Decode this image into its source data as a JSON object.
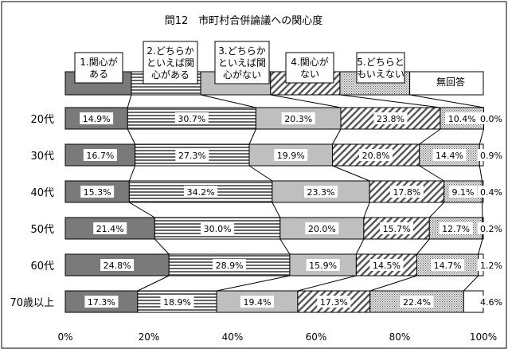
{
  "chart_data": {
    "type": "bar",
    "stacked": true,
    "orientation": "horizontal",
    "title": "問12　市町村合併論議への関心度",
    "xlabel": "",
    "ylabel": "",
    "xlim": [
      0,
      100
    ],
    "x_tick_labels": [
      "0%",
      "20%",
      "40%",
      "60%",
      "80%",
      "100%"
    ],
    "grid": false,
    "legend_position": "top",
    "categories": [
      "20代",
      "30代",
      "40代",
      "50代",
      "60代",
      "70歳以上"
    ],
    "series": [
      {
        "name": "1.関心がある",
        "label_lines": [
          "1.関心が",
          "ある"
        ],
        "pattern": "dark-gray",
        "values": [
          14.9,
          16.7,
          15.3,
          21.4,
          24.8,
          17.3
        ]
      },
      {
        "name": "2.どちらかといえば関心がある",
        "label_lines": [
          "2.どちらか",
          "といえば関",
          "心がある"
        ],
        "pattern": "horizontal-stripes",
        "values": [
          30.7,
          27.3,
          34.2,
          30.0,
          28.9,
          18.9
        ]
      },
      {
        "name": "3.どちらかといえば関心がない",
        "label_lines": [
          "3.どちらか",
          "といえば関",
          "心がない"
        ],
        "pattern": "light-gray",
        "values": [
          20.3,
          19.9,
          23.3,
          20.0,
          15.9,
          19.4
        ]
      },
      {
        "name": "4.関心がない",
        "label_lines": [
          "4.関心が",
          "ない"
        ],
        "pattern": "diagonal-stripes",
        "values": [
          23.8,
          20.8,
          17.8,
          15.7,
          14.5,
          17.3
        ]
      },
      {
        "name": "5.どちらともいえない",
        "label_lines": [
          "5.どちらと",
          "もいえない"
        ],
        "pattern": "dotted",
        "values": [
          10.4,
          14.4,
          9.1,
          12.7,
          14.7,
          22.4
        ]
      },
      {
        "name": "無回答",
        "label_lines": [
          "無回答"
        ],
        "pattern": "white",
        "values": [
          0.0,
          0.9,
          0.4,
          0.2,
          1.2,
          4.6
        ]
      }
    ],
    "value_labels": [
      [
        "14.9%",
        "30.7%",
        "20.3%",
        "23.8%",
        "10.4%",
        "0.0%"
      ],
      [
        "16.7%",
        "27.3%",
        "19.9%",
        "20.8%",
        "14.4%",
        "0.9%"
      ],
      [
        "15.3%",
        "34.2%",
        "23.3%",
        "17.8%",
        "9.1%",
        "0.4%"
      ],
      [
        "21.4%",
        "30.0%",
        "20.0%",
        "15.7%",
        "12.7%",
        "0.2%"
      ],
      [
        "24.8%",
        "28.9%",
        "15.9%",
        "14.5%",
        "14.7%",
        "1.2%"
      ],
      [
        "17.3%",
        "18.9%",
        "19.4%",
        "17.3%",
        "22.4%",
        "4.6%"
      ]
    ]
  }
}
